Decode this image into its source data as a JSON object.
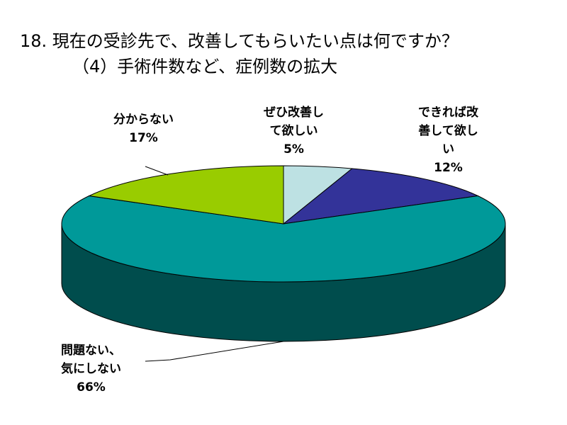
{
  "title_line1": "18. 現在の受診先で、改善してもらいたい点は何ですか？",
  "title_line2": "（4）手術件数など、症例数の拡大",
  "chart_data": {
    "type": "pie",
    "style": "3d-pie",
    "title": "18. 現在の受診先で、改善してもらいたい点は何ですか？ （4）手術件数など、症例数の拡大",
    "slices": [
      {
        "label": "ぜひ改善して欲しい",
        "value": 5,
        "display": "5%",
        "color": "#BDE1E3"
      },
      {
        "label": "できれば改善して欲しい",
        "value": 12,
        "display": "12%",
        "color": "#333399"
      },
      {
        "label": "問題ない、気にしない",
        "value": 66,
        "display": "66%",
        "color": "#009999"
      },
      {
        "label": "分からない",
        "value": 17,
        "display": "17%",
        "color": "#99CC00"
      }
    ],
    "label_lines": {
      "zehi": [
        "ぜひ改善し",
        "て欲しい",
        "5%"
      ],
      "dekireba": [
        "できれば改",
        "善して欲し",
        "い",
        "12%"
      ],
      "mondai": [
        "問題ない、",
        "気にしない",
        "66%"
      ],
      "wakaranai": [
        "分からない",
        "17%"
      ]
    },
    "side_color": "#004D4D",
    "legend": "none"
  }
}
